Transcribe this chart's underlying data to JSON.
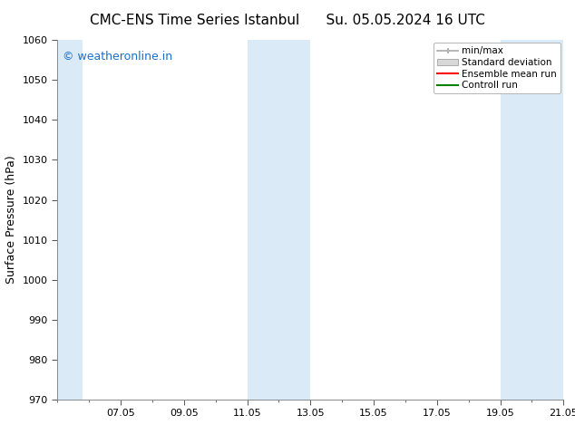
{
  "title_left": "CMC-ENS Time Series Istanbul",
  "title_right": "Su. 05.05.2024 16 UTC",
  "ylabel": "Surface Pressure (hPa)",
  "ylim": [
    970,
    1060
  ],
  "yticks": [
    970,
    980,
    990,
    1000,
    1010,
    1020,
    1030,
    1040,
    1050,
    1060
  ],
  "xlim_start": 0.0,
  "xlim_end": 16.0,
  "xtick_labels": [
    "07.05",
    "09.05",
    "11.05",
    "13.05",
    "15.05",
    "17.05",
    "19.05",
    "21.05"
  ],
  "xtick_positions": [
    2.0,
    4.0,
    6.0,
    8.0,
    10.0,
    12.0,
    14.0,
    16.0
  ],
  "shaded_bands": [
    {
      "x_start": 0.0,
      "x_end": 0.8,
      "color": "#daeaf6"
    },
    {
      "x_start": 6.0,
      "x_end": 8.0,
      "color": "#daeaf6"
    },
    {
      "x_start": 14.0,
      "x_end": 16.0,
      "color": "#daeaf6"
    }
  ],
  "watermark_text": "© weatheronline.in",
  "watermark_color": "#1a6fcc",
  "legend_labels": [
    "min/max",
    "Standard deviation",
    "Ensemble mean run",
    "Controll run"
  ],
  "legend_line_colors": [
    "#aaaaaa",
    "#cccccc",
    "#ff0000",
    "#008000"
  ],
  "background_color": "#ffffff",
  "plot_bg_color": "#ffffff",
  "title_fontsize": 11,
  "label_fontsize": 9,
  "tick_fontsize": 8,
  "watermark_fontsize": 9,
  "legend_fontsize": 7.5
}
